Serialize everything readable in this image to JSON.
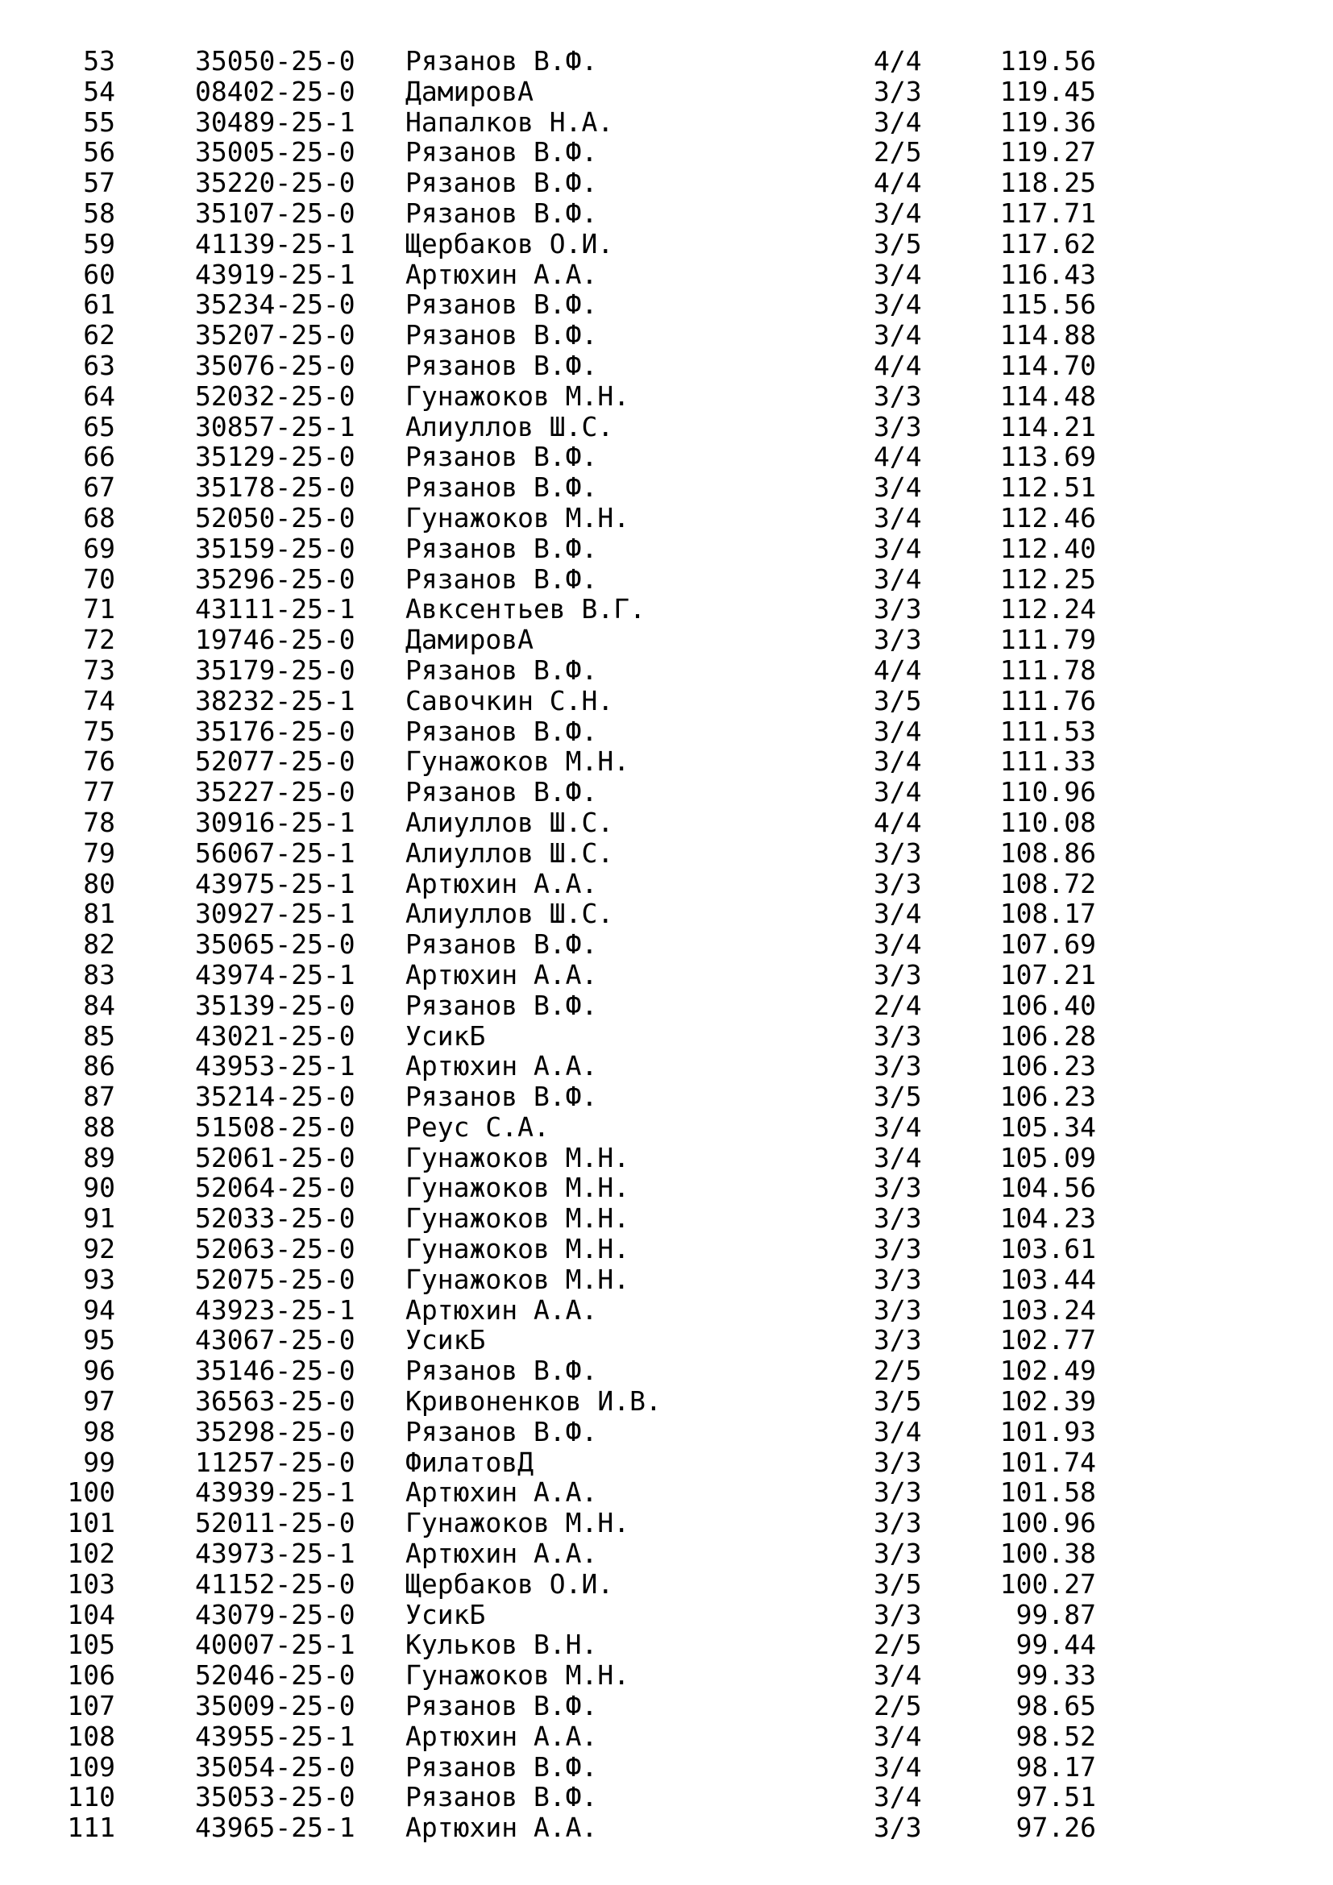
{
  "page": {
    "background": "#ffffff",
    "text_color": "#000000"
  },
  "table": {
    "rows": [
      {
        "rank": "53",
        "entry_id": "35050-25-0",
        "name": "Рязанов В.Ф.",
        "attempts": "4/4",
        "score": "119.56"
      },
      {
        "rank": "54",
        "entry_id": "08402-25-0",
        "name": "ДамировА",
        "attempts": "3/3",
        "score": "119.45"
      },
      {
        "rank": "55",
        "entry_id": "30489-25-1",
        "name": "Напалков Н.А.",
        "attempts": "3/4",
        "score": "119.36"
      },
      {
        "rank": "56",
        "entry_id": "35005-25-0",
        "name": "Рязанов В.Ф.",
        "attempts": "2/5",
        "score": "119.27"
      },
      {
        "rank": "57",
        "entry_id": "35220-25-0",
        "name": "Рязанов В.Ф.",
        "attempts": "4/4",
        "score": "118.25"
      },
      {
        "rank": "58",
        "entry_id": "35107-25-0",
        "name": "Рязанов В.Ф.",
        "attempts": "3/4",
        "score": "117.71"
      },
      {
        "rank": "59",
        "entry_id": "41139-25-1",
        "name": "Щербаков О.И.",
        "attempts": "3/5",
        "score": "117.62"
      },
      {
        "rank": "60",
        "entry_id": "43919-25-1",
        "name": "Артюхин А.А.",
        "attempts": "3/4",
        "score": "116.43"
      },
      {
        "rank": "61",
        "entry_id": "35234-25-0",
        "name": "Рязанов В.Ф.",
        "attempts": "3/4",
        "score": "115.56"
      },
      {
        "rank": "62",
        "entry_id": "35207-25-0",
        "name": "Рязанов В.Ф.",
        "attempts": "3/4",
        "score": "114.88"
      },
      {
        "rank": "63",
        "entry_id": "35076-25-0",
        "name": "Рязанов В.Ф.",
        "attempts": "4/4",
        "score": "114.70"
      },
      {
        "rank": "64",
        "entry_id": "52032-25-0",
        "name": "Гунажоков М.Н.",
        "attempts": "3/3",
        "score": "114.48"
      },
      {
        "rank": "65",
        "entry_id": "30857-25-1",
        "name": "Алиуллов Ш.С.",
        "attempts": "3/3",
        "score": "114.21"
      },
      {
        "rank": "66",
        "entry_id": "35129-25-0",
        "name": "Рязанов В.Ф.",
        "attempts": "4/4",
        "score": "113.69"
      },
      {
        "rank": "67",
        "entry_id": "35178-25-0",
        "name": "Рязанов В.Ф.",
        "attempts": "3/4",
        "score": "112.51"
      },
      {
        "rank": "68",
        "entry_id": "52050-25-0",
        "name": "Гунажоков М.Н.",
        "attempts": "3/4",
        "score": "112.46"
      },
      {
        "rank": "69",
        "entry_id": "35159-25-0",
        "name": "Рязанов В.Ф.",
        "attempts": "3/4",
        "score": "112.40"
      },
      {
        "rank": "70",
        "entry_id": "35296-25-0",
        "name": "Рязанов В.Ф.",
        "attempts": "3/4",
        "score": "112.25"
      },
      {
        "rank": "71",
        "entry_id": "43111-25-1",
        "name": "Авксентьев В.Г.",
        "attempts": "3/3",
        "score": "112.24"
      },
      {
        "rank": "72",
        "entry_id": "19746-25-0",
        "name": "ДамировА",
        "attempts": "3/3",
        "score": "111.79"
      },
      {
        "rank": "73",
        "entry_id": "35179-25-0",
        "name": "Рязанов В.Ф.",
        "attempts": "4/4",
        "score": "111.78"
      },
      {
        "rank": "74",
        "entry_id": "38232-25-1",
        "name": "Савочкин С.Н.",
        "attempts": "3/5",
        "score": "111.76"
      },
      {
        "rank": "75",
        "entry_id": "35176-25-0",
        "name": "Рязанов В.Ф.",
        "attempts": "3/4",
        "score": "111.53"
      },
      {
        "rank": "76",
        "entry_id": "52077-25-0",
        "name": "Гунажоков М.Н.",
        "attempts": "3/4",
        "score": "111.33"
      },
      {
        "rank": "77",
        "entry_id": "35227-25-0",
        "name": "Рязанов В.Ф.",
        "attempts": "3/4",
        "score": "110.96"
      },
      {
        "rank": "78",
        "entry_id": "30916-25-1",
        "name": "Алиуллов Ш.С.",
        "attempts": "4/4",
        "score": "110.08"
      },
      {
        "rank": "79",
        "entry_id": "56067-25-1",
        "name": "Алиуллов Ш.С.",
        "attempts": "3/3",
        "score": "108.86"
      },
      {
        "rank": "80",
        "entry_id": "43975-25-1",
        "name": "Артюхин А.А.",
        "attempts": "3/3",
        "score": "108.72"
      },
      {
        "rank": "81",
        "entry_id": "30927-25-1",
        "name": "Алиуллов Ш.С.",
        "attempts": "3/4",
        "score": "108.17"
      },
      {
        "rank": "82",
        "entry_id": "35065-25-0",
        "name": "Рязанов В.Ф.",
        "attempts": "3/4",
        "score": "107.69"
      },
      {
        "rank": "83",
        "entry_id": "43974-25-1",
        "name": "Артюхин А.А.",
        "attempts": "3/3",
        "score": "107.21"
      },
      {
        "rank": "84",
        "entry_id": "35139-25-0",
        "name": "Рязанов В.Ф.",
        "attempts": "2/4",
        "score": "106.40"
      },
      {
        "rank": "85",
        "entry_id": "43021-25-0",
        "name": "УсикБ",
        "attempts": "3/3",
        "score": "106.28"
      },
      {
        "rank": "86",
        "entry_id": "43953-25-1",
        "name": "Артюхин А.А.",
        "attempts": "3/3",
        "score": "106.23"
      },
      {
        "rank": "87",
        "entry_id": "35214-25-0",
        "name": "Рязанов В.Ф.",
        "attempts": "3/5",
        "score": "106.23"
      },
      {
        "rank": "88",
        "entry_id": "51508-25-0",
        "name": "Реус С.А.",
        "attempts": "3/4",
        "score": "105.34"
      },
      {
        "rank": "89",
        "entry_id": "52061-25-0",
        "name": "Гунажоков М.Н.",
        "attempts": "3/4",
        "score": "105.09"
      },
      {
        "rank": "90",
        "entry_id": "52064-25-0",
        "name": "Гунажоков М.Н.",
        "attempts": "3/3",
        "score": "104.56"
      },
      {
        "rank": "91",
        "entry_id": "52033-25-0",
        "name": "Гунажоков М.Н.",
        "attempts": "3/3",
        "score": "104.23"
      },
      {
        "rank": "92",
        "entry_id": "52063-25-0",
        "name": "Гунажоков М.Н.",
        "attempts": "3/3",
        "score": "103.61"
      },
      {
        "rank": "93",
        "entry_id": "52075-25-0",
        "name": "Гунажоков М.Н.",
        "attempts": "3/3",
        "score": "103.44"
      },
      {
        "rank": "94",
        "entry_id": "43923-25-1",
        "name": "Артюхин А.А.",
        "attempts": "3/3",
        "score": "103.24"
      },
      {
        "rank": "95",
        "entry_id": "43067-25-0",
        "name": "УсикБ",
        "attempts": "3/3",
        "score": "102.77"
      },
      {
        "rank": "96",
        "entry_id": "35146-25-0",
        "name": "Рязанов В.Ф.",
        "attempts": "2/5",
        "score": "102.49"
      },
      {
        "rank": "97",
        "entry_id": "36563-25-0",
        "name": "Кривоненков И.В.",
        "attempts": "3/5",
        "score": "102.39"
      },
      {
        "rank": "98",
        "entry_id": "35298-25-0",
        "name": "Рязанов В.Ф.",
        "attempts": "3/4",
        "score": "101.93"
      },
      {
        "rank": "99",
        "entry_id": "11257-25-0",
        "name": "ФилатовД",
        "attempts": "3/3",
        "score": "101.74"
      },
      {
        "rank": "100",
        "entry_id": "43939-25-1",
        "name": "Артюхин А.А.",
        "attempts": "3/3",
        "score": "101.58"
      },
      {
        "rank": "101",
        "entry_id": "52011-25-0",
        "name": "Гунажоков М.Н.",
        "attempts": "3/3",
        "score": "100.96"
      },
      {
        "rank": "102",
        "entry_id": "43973-25-1",
        "name": "Артюхин А.А.",
        "attempts": "3/3",
        "score": "100.38"
      },
      {
        "rank": "103",
        "entry_id": "41152-25-0",
        "name": "Щербаков О.И.",
        "attempts": "3/5",
        "score": "100.27"
      },
      {
        "rank": "104",
        "entry_id": "43079-25-0",
        "name": "УсикБ",
        "attempts": "3/3",
        "score": "99.87"
      },
      {
        "rank": "105",
        "entry_id": "40007-25-1",
        "name": "Кульков В.Н.",
        "attempts": "2/5",
        "score": "99.44"
      },
      {
        "rank": "106",
        "entry_id": "52046-25-0",
        "name": "Гунажоков М.Н.",
        "attempts": "3/4",
        "score": "99.33"
      },
      {
        "rank": "107",
        "entry_id": "35009-25-0",
        "name": "Рязанов В.Ф.",
        "attempts": "2/5",
        "score": "98.65"
      },
      {
        "rank": "108",
        "entry_id": "43955-25-1",
        "name": "Артюхин А.А.",
        "attempts": "3/4",
        "score": "98.52"
      },
      {
        "rank": "109",
        "entry_id": "35054-25-0",
        "name": "Рязанов В.Ф.",
        "attempts": "3/4",
        "score": "98.17"
      },
      {
        "rank": "110",
        "entry_id": "35053-25-0",
        "name": "Рязанов В.Ф.",
        "attempts": "3/4",
        "score": "97.51"
      },
      {
        "rank": "111",
        "entry_id": "43965-25-1",
        "name": "Артюхин А.А.",
        "attempts": "3/3",
        "score": "97.26"
      }
    ]
  }
}
